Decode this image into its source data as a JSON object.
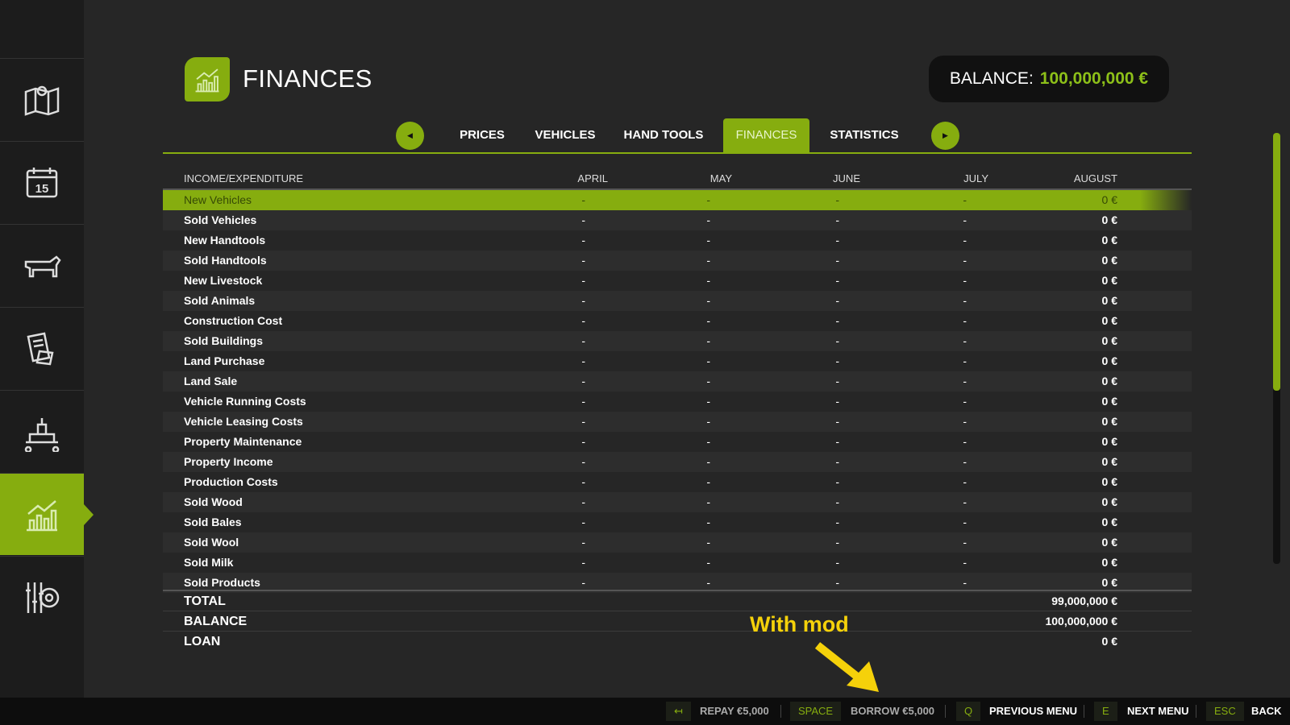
{
  "sidebar": {
    "items": [
      {
        "icon": "map-icon"
      },
      {
        "icon": "calendar-icon",
        "text": "15"
      },
      {
        "icon": "cow-icon"
      },
      {
        "icon": "contracts-icon"
      },
      {
        "icon": "production-icon"
      },
      {
        "icon": "finances-icon",
        "active": true
      },
      {
        "icon": "settings-icon"
      }
    ]
  },
  "header": {
    "title": "FINANCES",
    "balance_label": "BALANCE:",
    "balance_value": "100,000,000 €"
  },
  "tabs": [
    {
      "label": "PRICES"
    },
    {
      "label": "VEHICLES"
    },
    {
      "label": "HAND TOOLS"
    },
    {
      "label": "FINANCES",
      "active": true
    },
    {
      "label": "STATISTICS"
    }
  ],
  "table": {
    "columns": [
      "INCOME/EXPENDITURE",
      "APRIL",
      "MAY",
      "JUNE",
      "JULY",
      "AUGUST"
    ],
    "rows": [
      [
        "New Vehicles",
        "-",
        "-",
        "-",
        "-",
        "0 €"
      ],
      [
        "Sold Vehicles",
        "-",
        "-",
        "-",
        "-",
        "0 €"
      ],
      [
        "New Handtools",
        "-",
        "-",
        "-",
        "-",
        "0 €"
      ],
      [
        "Sold Handtools",
        "-",
        "-",
        "-",
        "-",
        "0 €"
      ],
      [
        "New Livestock",
        "-",
        "-",
        "-",
        "-",
        "0 €"
      ],
      [
        "Sold Animals",
        "-",
        "-",
        "-",
        "-",
        "0 €"
      ],
      [
        "Construction Cost",
        "-",
        "-",
        "-",
        "-",
        "0 €"
      ],
      [
        "Sold Buildings",
        "-",
        "-",
        "-",
        "-",
        "0 €"
      ],
      [
        "Land Purchase",
        "-",
        "-",
        "-",
        "-",
        "0 €"
      ],
      [
        "Land Sale",
        "-",
        "-",
        "-",
        "-",
        "0 €"
      ],
      [
        "Vehicle Running Costs",
        "-",
        "-",
        "-",
        "-",
        "0 €"
      ],
      [
        "Vehicle Leasing Costs",
        "-",
        "-",
        "-",
        "-",
        "0 €"
      ],
      [
        "Property Maintenance",
        "-",
        "-",
        "-",
        "-",
        "0 €"
      ],
      [
        "Property Income",
        "-",
        "-",
        "-",
        "-",
        "0 €"
      ],
      [
        "Production Costs",
        "-",
        "-",
        "-",
        "-",
        "0 €"
      ],
      [
        "Sold Wood",
        "-",
        "-",
        "-",
        "-",
        "0 €"
      ],
      [
        "Sold Bales",
        "-",
        "-",
        "-",
        "-",
        "0 €"
      ],
      [
        "Sold Wool",
        "-",
        "-",
        "-",
        "-",
        "0 €"
      ],
      [
        "Sold Milk",
        "-",
        "-",
        "-",
        "-",
        "0 €"
      ],
      [
        "Sold Products",
        "-",
        "-",
        "-",
        "-",
        "0 €"
      ]
    ],
    "totals": [
      {
        "label": "TOTAL",
        "value": "99,000,000 €"
      },
      {
        "label": "BALANCE",
        "value": "100,000,000 €"
      },
      {
        "label": "LOAN",
        "value": "0 €"
      }
    ]
  },
  "annotation": "With mod",
  "footer": [
    {
      "key": "↤",
      "label": "REPAY €5,000",
      "dim": true
    },
    {
      "key": "SPACE",
      "label": "BORROW €5,000",
      "dim": true
    },
    {
      "key": "Q",
      "label": "PREVIOUS MENU"
    },
    {
      "key": "E",
      "label": "NEXT MENU"
    },
    {
      "key": "ESC",
      "label": "BACK"
    }
  ],
  "colors": {
    "accent": "#86ad0f",
    "balance": "#8dc019",
    "annotation": "#f5d10a"
  }
}
